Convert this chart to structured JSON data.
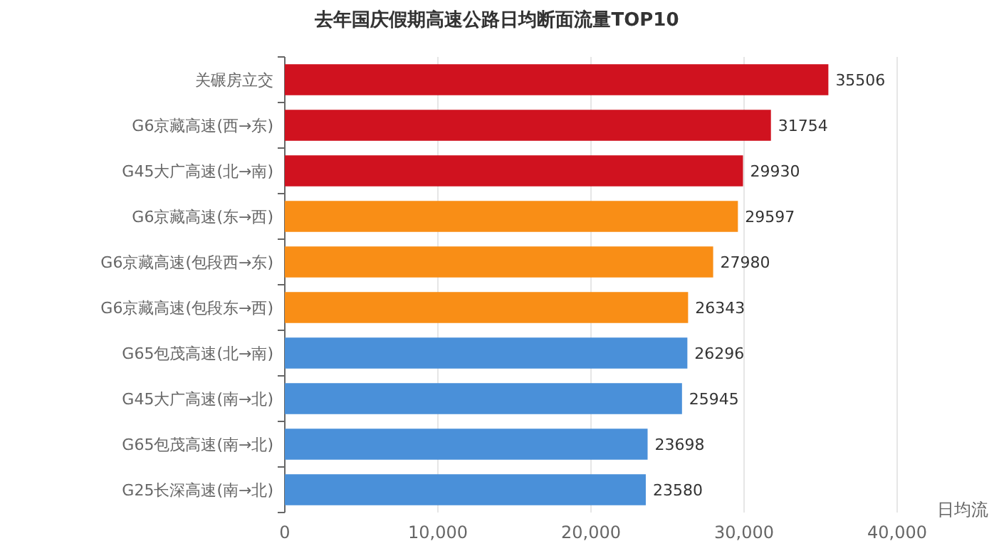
{
  "chart_data": {
    "type": "bar",
    "orientation": "horizontal",
    "title": "去年国庆假期高速公路日均断面流量TOP10",
    "xlabel": "日均流",
    "categories": [
      "关碾房立交",
      "G6京藏高速(西→东)",
      "G45大广高速(北→南)",
      "G6京藏高速(东→西)",
      "G6京藏高速(包段西→东)",
      "G6京藏高速(包段东→西)",
      "G65包茂高速(北→南)",
      "G45大广高速(南→北)",
      "G65包茂高速(南→北)",
      "G25长深高速(南→北)"
    ],
    "values": [
      35506,
      31754,
      29930,
      29597,
      27980,
      26343,
      26296,
      25945,
      23698,
      23580
    ],
    "colors": [
      "#d0121f",
      "#d0121f",
      "#d0121f",
      "#f98e16",
      "#f98e16",
      "#f98e16",
      "#4a90d9",
      "#4a90d9",
      "#4a90d9",
      "#4a90d9"
    ],
    "xlim": [
      0,
      40000
    ],
    "xticks": [
      {
        "value": 0,
        "label": "0"
      },
      {
        "value": 10000,
        "label": "10,000"
      },
      {
        "value": 20000,
        "label": "20,000"
      },
      {
        "value": 30000,
        "label": "30,000"
      },
      {
        "value": 40000,
        "label": "40,000"
      }
    ],
    "grid": "x",
    "data_labels": true
  }
}
